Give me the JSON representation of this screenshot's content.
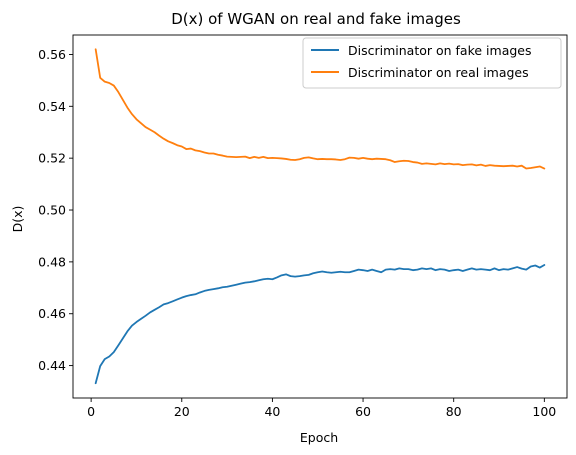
{
  "chart_data": {
    "type": "line",
    "title": "D(x) of WGAN on real and fake images",
    "xlabel": "Epoch",
    "ylabel": "D(x)",
    "xlim": [
      -4,
      105
    ],
    "ylim": [
      0.4275,
      0.5675
    ],
    "xticks": [
      0,
      20,
      40,
      60,
      80,
      100
    ],
    "yticks": [
      0.44,
      0.46,
      0.48,
      0.5,
      0.52,
      0.54,
      0.56
    ],
    "xtick_labels": [
      "0",
      "20",
      "40",
      "60",
      "80",
      "100"
    ],
    "ytick_labels": [
      "0.44",
      "0.46",
      "0.48",
      "0.50",
      "0.52",
      "0.54",
      "0.56"
    ],
    "grid": false,
    "legend_position": "upper right",
    "x": [
      1,
      2,
      3,
      4,
      5,
      6,
      7,
      8,
      9,
      10,
      11,
      12,
      13,
      14,
      15,
      16,
      17,
      18,
      19,
      20,
      21,
      22,
      23,
      24,
      25,
      26,
      27,
      28,
      29,
      30,
      31,
      32,
      33,
      34,
      35,
      36,
      37,
      38,
      39,
      40,
      41,
      42,
      43,
      44,
      45,
      46,
      47,
      48,
      49,
      50,
      51,
      52,
      53,
      54,
      55,
      56,
      57,
      58,
      59,
      60,
      61,
      62,
      63,
      64,
      65,
      66,
      67,
      68,
      69,
      70,
      71,
      72,
      73,
      74,
      75,
      76,
      77,
      78,
      79,
      80,
      81,
      82,
      83,
      84,
      85,
      86,
      87,
      88,
      89,
      90,
      91,
      92,
      93,
      94,
      95,
      96,
      97,
      98,
      99,
      100
    ],
    "series": [
      {
        "name": "Discriminator on fake images",
        "color": "#1f77b4",
        "values": [
          0.4332,
          0.4398,
          0.4425,
          0.4435,
          0.4452,
          0.4478,
          0.4505,
          0.4532,
          0.4554,
          0.4568,
          0.458,
          0.4592,
          0.4605,
          0.4615,
          0.4625,
          0.4636,
          0.4641,
          0.4648,
          0.4655,
          0.4662,
          0.4668,
          0.4672,
          0.4675,
          0.4682,
          0.4688,
          0.4692,
          0.4695,
          0.4698,
          0.4702,
          0.4704,
          0.4708,
          0.4712,
          0.4716,
          0.472,
          0.4722,
          0.4725,
          0.4729,
          0.4733,
          0.4735,
          0.4733,
          0.474,
          0.4748,
          0.4752,
          0.4745,
          0.4743,
          0.4745,
          0.4748,
          0.475,
          0.4756,
          0.476,
          0.4763,
          0.476,
          0.4758,
          0.476,
          0.4762,
          0.476,
          0.476,
          0.4765,
          0.477,
          0.4768,
          0.4765,
          0.477,
          0.4765,
          0.476,
          0.477,
          0.4772,
          0.477,
          0.4775,
          0.4772,
          0.4772,
          0.4768,
          0.477,
          0.4775,
          0.4772,
          0.4775,
          0.4768,
          0.4772,
          0.477,
          0.4765,
          0.4768,
          0.477,
          0.4765,
          0.477,
          0.4775,
          0.477,
          0.4772,
          0.477,
          0.4768,
          0.4775,
          0.4768,
          0.4772,
          0.477,
          0.4775,
          0.478,
          0.4774,
          0.477,
          0.4782,
          0.4786,
          0.4778,
          0.4788
        ]
      },
      {
        "name": "Discriminator on real images",
        "color": "#ff7f0e",
        "values": [
          0.562,
          0.551,
          0.5495,
          0.549,
          0.548,
          0.5455,
          0.5425,
          0.5395,
          0.537,
          0.535,
          0.5335,
          0.532,
          0.531,
          0.53,
          0.5287,
          0.5275,
          0.5265,
          0.5258,
          0.525,
          0.5245,
          0.5235,
          0.5237,
          0.523,
          0.5227,
          0.5222,
          0.5218,
          0.5218,
          0.5213,
          0.521,
          0.5206,
          0.5205,
          0.5204,
          0.5205,
          0.5206,
          0.52,
          0.5205,
          0.5201,
          0.5205,
          0.52,
          0.5201,
          0.52,
          0.5199,
          0.5197,
          0.5194,
          0.5193,
          0.5196,
          0.5201,
          0.5203,
          0.5199,
          0.5196,
          0.5197,
          0.5196,
          0.5196,
          0.5195,
          0.5193,
          0.5196,
          0.5202,
          0.5201,
          0.5198,
          0.5201,
          0.5198,
          0.5196,
          0.5198,
          0.5197,
          0.5196,
          0.5192,
          0.5185,
          0.5188,
          0.519,
          0.5189,
          0.5185,
          0.5183,
          0.5178,
          0.518,
          0.5178,
          0.5176,
          0.518,
          0.5177,
          0.5179,
          0.5176,
          0.5177,
          0.5173,
          0.5175,
          0.5176,
          0.5172,
          0.5175,
          0.517,
          0.5173,
          0.5171,
          0.517,
          0.5169,
          0.517,
          0.5171,
          0.5168,
          0.5171,
          0.516,
          0.5162,
          0.5165,
          0.5168,
          0.516
        ]
      }
    ]
  }
}
